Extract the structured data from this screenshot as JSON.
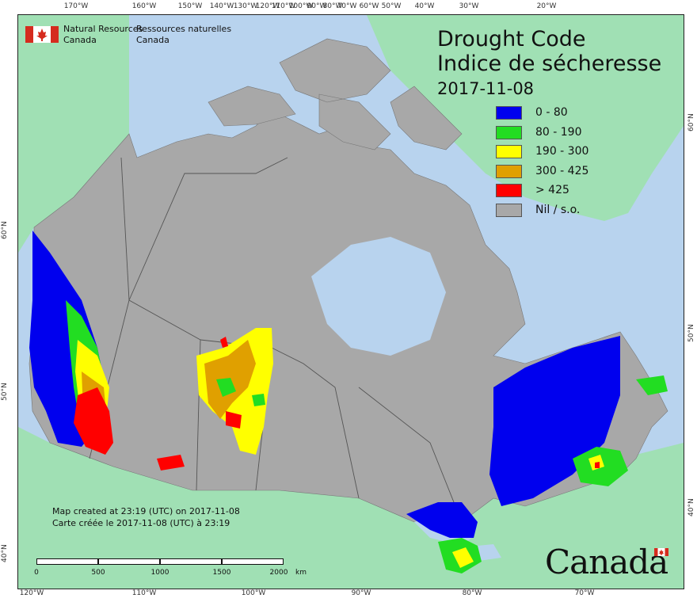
{
  "agency": {
    "name_en_line1": "Natural Resources",
    "name_en_line2": "Canada",
    "name_fr_line1": "Ressources naturelles",
    "name_fr_line2": "Canada"
  },
  "title": {
    "en": "Drought Code",
    "fr": "Indice de sécheresse",
    "date": "2017-11-08"
  },
  "legend": [
    {
      "label": "0 - 80",
      "color": "#0000ee"
    },
    {
      "label": "80 - 190",
      "color": "#22dd22"
    },
    {
      "label": "190 - 300",
      "color": "#ffff00"
    },
    {
      "label": "300 - 425",
      "color": "#e0a000"
    },
    {
      "label": "> 425",
      "color": "#ff0000"
    },
    {
      "label": "Nil / s.o.",
      "color": "#a8a8a8"
    }
  ],
  "created": {
    "en": "Map created at 23:19 (UTC) on 2017-11-08",
    "fr": "Carte créée le 2017-11-08 (UTC) à 23:19"
  },
  "scale": {
    "labels": [
      "0",
      "500",
      "1000",
      "1500",
      "2000"
    ],
    "unit": "km"
  },
  "ticks": {
    "top": [
      "170°W",
      "160°W",
      "150°W",
      "140°W",
      "130°W",
      "120°W",
      "110°W",
      "100°W",
      "90°W",
      "80°W",
      "70°W",
      "60°W",
      "50°W",
      "40°W",
      "30°W",
      "20°W"
    ],
    "bottom": [
      "120°W",
      "110°W",
      "100°W",
      "90°W",
      "80°W",
      "70°W"
    ],
    "left": [
      "60°N",
      "50°N",
      "40°N"
    ],
    "right": [
      "60°N",
      "50°N",
      "40°N"
    ]
  },
  "wordmark": "Canada",
  "colors": {
    "ocean": "#b8d3ee",
    "land_other": "#a0e0b4",
    "canada_nil": "#a8a8a8",
    "lake": "#b8d3ee",
    "border": "#555555"
  }
}
